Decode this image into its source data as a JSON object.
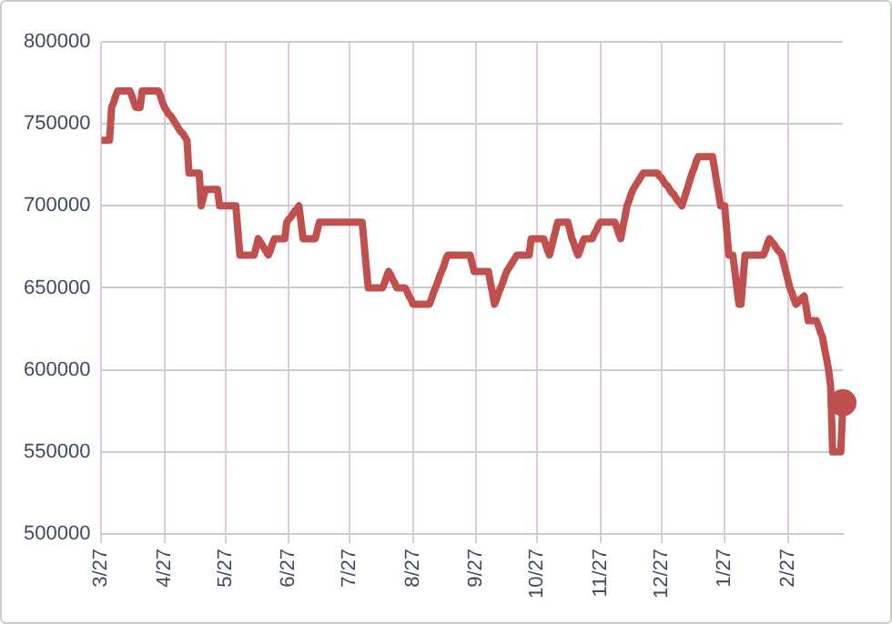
{
  "chart_data": {
    "type": "line",
    "grid": true,
    "legend": false,
    "categories": [
      "3/27",
      null,
      null,
      null,
      null,
      null,
      null,
      null,
      null,
      null,
      null,
      null,
      null,
      null,
      null,
      null,
      null,
      null,
      null,
      null,
      null,
      null,
      null,
      null,
      null,
      null,
      null,
      null,
      null,
      null,
      null,
      "4/27",
      null,
      null,
      null,
      null,
      null,
      null,
      null,
      null,
      null,
      null,
      null,
      null,
      null,
      null,
      null,
      null,
      null,
      null,
      null,
      null,
      null,
      null,
      null,
      null,
      null,
      null,
      null,
      null,
      null,
      "5/27",
      null,
      null,
      null,
      null,
      null,
      null,
      null,
      null,
      null,
      null,
      null,
      null,
      null,
      null,
      null,
      null,
      null,
      null,
      null,
      null,
      null,
      null,
      null,
      null,
      null,
      null,
      null,
      null,
      null,
      null,
      "6/27",
      null,
      null,
      null,
      null,
      null,
      null,
      null,
      null,
      null,
      null,
      null,
      null,
      null,
      null,
      null,
      null,
      null,
      null,
      null,
      null,
      null,
      null,
      null,
      null,
      null,
      null,
      null,
      null,
      null,
      "7/27",
      null,
      null,
      null,
      null,
      null,
      null,
      null,
      null,
      null,
      null,
      null,
      null,
      null,
      null,
      null,
      null,
      null,
      null,
      null,
      null,
      null,
      null,
      null,
      null,
      null,
      null,
      null,
      null,
      null,
      null,
      "8/27",
      null,
      null,
      null,
      null,
      null,
      null,
      null,
      null,
      null,
      null,
      null,
      null,
      null,
      null,
      null,
      null,
      null,
      null,
      null,
      null,
      null,
      null,
      null,
      null,
      null,
      null,
      null,
      null,
      null,
      null,
      "9/27",
      null,
      null,
      null,
      null,
      null,
      null,
      null,
      null,
      null,
      null,
      null,
      null,
      null,
      null,
      null,
      null,
      null,
      null,
      null,
      null,
      null,
      null,
      null,
      null,
      null,
      null,
      null,
      null,
      null,
      "10/27",
      null,
      null,
      null,
      null,
      null,
      null,
      null,
      null,
      null,
      null,
      null,
      null,
      null,
      null,
      null,
      null,
      null,
      null,
      null,
      null,
      null,
      null,
      null,
      null,
      null,
      null,
      null,
      null,
      null,
      null,
      "11/27",
      null,
      null,
      null,
      null,
      null,
      null,
      null,
      null,
      null,
      null,
      null,
      null,
      null,
      null,
      null,
      null,
      null,
      null,
      null,
      null,
      null,
      null,
      null,
      null,
      null,
      null,
      null,
      null,
      null,
      "12/27",
      null,
      null,
      null,
      null,
      null,
      null,
      null,
      null,
      null,
      null,
      null,
      null,
      null,
      null,
      null,
      null,
      null,
      null,
      null,
      null,
      null,
      null,
      null,
      null,
      null,
      null,
      null,
      null,
      null,
      null,
      "1/27",
      null,
      null,
      null,
      null,
      null,
      null,
      null,
      null,
      null,
      null,
      null,
      null,
      null,
      null,
      null,
      null,
      null,
      null,
      null,
      null,
      null,
      null,
      null,
      null,
      null,
      null,
      null,
      null,
      null,
      null,
      "2/27",
      null,
      null,
      null,
      null,
      null,
      null,
      null,
      null,
      null,
      null,
      null,
      null,
      null,
      null,
      null,
      null,
      null,
      null,
      null,
      null,
      null,
      null,
      null,
      null,
      null,
      null,
      null
    ],
    "ylim": [
      500000,
      800000
    ],
    "yticks": [
      500000,
      550000,
      600000,
      650000,
      700000,
      750000,
      800000
    ],
    "series": [
      {
        "type": "line",
        "color": "#c0504d",
        "marker": "none",
        "line_style": "solid",
        "values": [
          740000,
          740000,
          740000,
          740000,
          740000,
          760000,
          763000,
          767000,
          770000,
          770000,
          770000,
          770000,
          770000,
          770000,
          770000,
          767000,
          763000,
          760000,
          760000,
          760000,
          770000,
          770000,
          770000,
          770000,
          770000,
          770000,
          770000,
          770000,
          770000,
          767000,
          763000,
          760000,
          758000,
          756000,
          755000,
          753000,
          751000,
          749000,
          747000,
          745000,
          744000,
          742000,
          740000,
          720000,
          720000,
          720000,
          720000,
          720000,
          720000,
          700000,
          705000,
          710000,
          710000,
          710000,
          710000,
          710000,
          710000,
          710000,
          700000,
          700000,
          700000,
          700000,
          700000,
          700000,
          700000,
          700000,
          700000,
          685000,
          670000,
          670000,
          670000,
          670000,
          670000,
          670000,
          670000,
          670000,
          675000,
          680000,
          678000,
          676000,
          674000,
          672000,
          670000,
          673000,
          677000,
          680000,
          680000,
          680000,
          680000,
          680000,
          680000,
          690000,
          692000,
          693000,
          695000,
          697000,
          698000,
          700000,
          690000,
          680000,
          680000,
          680000,
          680000,
          680000,
          680000,
          680000,
          685000,
          690000,
          690000,
          690000,
          690000,
          690000,
          690000,
          690000,
          690000,
          690000,
          690000,
          690000,
          690000,
          690000,
          690000,
          690000,
          690000,
          690000,
          690000,
          690000,
          690000,
          690000,
          690000,
          677000,
          663000,
          650000,
          650000,
          650000,
          650000,
          650000,
          650000,
          650000,
          650000,
          653000,
          657000,
          660000,
          658000,
          655000,
          653000,
          650000,
          650000,
          650000,
          650000,
          650000,
          648000,
          645000,
          643000,
          640000,
          640000,
          640000,
          640000,
          640000,
          640000,
          640000,
          640000,
          640000,
          643000,
          647000,
          650000,
          653000,
          657000,
          660000,
          663000,
          667000,
          670000,
          670000,
          670000,
          670000,
          670000,
          670000,
          670000,
          670000,
          670000,
          670000,
          670000,
          670000,
          665000,
          660000,
          660000,
          660000,
          660000,
          660000,
          660000,
          660000,
          660000,
          653000,
          647000,
          640000,
          643000,
          647000,
          650000,
          653000,
          657000,
          660000,
          662000,
          664000,
          666000,
          668000,
          670000,
          670000,
          670000,
          670000,
          670000,
          670000,
          670000,
          680000,
          680000,
          680000,
          680000,
          680000,
          680000,
          680000,
          677000,
          673000,
          670000,
          675000,
          680000,
          685000,
          690000,
          690000,
          690000,
          690000,
          690000,
          690000,
          685000,
          680000,
          677000,
          673000,
          670000,
          673000,
          677000,
          680000,
          680000,
          680000,
          680000,
          680000,
          683000,
          685000,
          688000,
          690000,
          690000,
          690000,
          690000,
          690000,
          690000,
          690000,
          690000,
          687000,
          683000,
          680000,
          687000,
          693000,
          700000,
          703000,
          707000,
          710000,
          712000,
          714000,
          716000,
          718000,
          720000,
          720000,
          720000,
          720000,
          720000,
          720000,
          720000,
          720000,
          718000,
          717000,
          715000,
          713000,
          712000,
          710000,
          708000,
          707000,
          705000,
          703000,
          702000,
          700000,
          704000,
          708000,
          712000,
          716000,
          720000,
          723000,
          727000,
          730000,
          730000,
          730000,
          730000,
          730000,
          730000,
          730000,
          730000,
          723000,
          715000,
          708000,
          700000,
          700000,
          700000,
          685000,
          670000,
          670000,
          670000,
          660000,
          650000,
          640000,
          640000,
          655000,
          670000,
          670000,
          670000,
          670000,
          670000,
          670000,
          670000,
          670000,
          670000,
          670000,
          673000,
          677000,
          680000,
          678000,
          677000,
          675000,
          673000,
          672000,
          670000,
          665000,
          660000,
          655000,
          650000,
          647000,
          643000,
          640000,
          641000,
          643000,
          644000,
          645000,
          638000,
          630000,
          630000,
          630000,
          630000,
          630000,
          627000,
          623000,
          620000,
          613000,
          607000,
          600000,
          590000,
          550000,
          550000,
          550000,
          550000,
          550000,
          580000
        ]
      },
      {
        "type": "scatter",
        "color": "#c0504d",
        "marker": "circle",
        "values": [
          null,
          null,
          null,
          null,
          null,
          null,
          null,
          null,
          null,
          null,
          null,
          null,
          null,
          null,
          null,
          null,
          null,
          null,
          null,
          null,
          null,
          null,
          null,
          null,
          null,
          null,
          null,
          null,
          null,
          null,
          null,
          null,
          null,
          null,
          null,
          null,
          null,
          null,
          null,
          null,
          null,
          null,
          null,
          null,
          null,
          null,
          null,
          null,
          null,
          null,
          null,
          null,
          null,
          null,
          null,
          null,
          null,
          null,
          null,
          null,
          null,
          null,
          null,
          null,
          null,
          null,
          null,
          null,
          null,
          null,
          null,
          null,
          null,
          null,
          null,
          null,
          null,
          null,
          null,
          null,
          null,
          null,
          null,
          null,
          null,
          null,
          null,
          null,
          null,
          null,
          null,
          null,
          null,
          null,
          null,
          null,
          null,
          null,
          null,
          null,
          null,
          null,
          null,
          null,
          null,
          null,
          null,
          null,
          null,
          null,
          null,
          null,
          null,
          null,
          null,
          null,
          null,
          null,
          null,
          null,
          null,
          null,
          null,
          null,
          null,
          null,
          null,
          null,
          null,
          null,
          null,
          null,
          null,
          null,
          null,
          null,
          null,
          null,
          null,
          null,
          null,
          null,
          null,
          null,
          null,
          null,
          null,
          null,
          null,
          null,
          null,
          null,
          null,
          null,
          null,
          null,
          null,
          null,
          null,
          null,
          null,
          null,
          null,
          null,
          null,
          null,
          null,
          null,
          null,
          null,
          null,
          null,
          null,
          null,
          null,
          null,
          null,
          null,
          null,
          null,
          null,
          null,
          null,
          null,
          null,
          null,
          null,
          null,
          null,
          null,
          null,
          null,
          null,
          null,
          null,
          null,
          null,
          null,
          null,
          null,
          null,
          null,
          null,
          null,
          null,
          null,
          null,
          null,
          null,
          null,
          null,
          null,
          null,
          null,
          null,
          null,
          null,
          null,
          null,
          null,
          null,
          null,
          null,
          null,
          null,
          null,
          null,
          null,
          null,
          null,
          null,
          null,
          null,
          null,
          null,
          null,
          null,
          null,
          null,
          null,
          null,
          null,
          null,
          null,
          null,
          null,
          null,
          null,
          null,
          null,
          null,
          null,
          null,
          null,
          null,
          null,
          null,
          null,
          null,
          null,
          null,
          null,
          null,
          null,
          null,
          null,
          null,
          null,
          null,
          null,
          null,
          null,
          null,
          null,
          null,
          null,
          null,
          null,
          null,
          null,
          null,
          null,
          null,
          null,
          null,
          null,
          null,
          null,
          null,
          null,
          null,
          null,
          null,
          null,
          null,
          null,
          null,
          null,
          null,
          null,
          null,
          null,
          null,
          null,
          null,
          null,
          null,
          null,
          null,
          null,
          null,
          null,
          null,
          null,
          null,
          null,
          null,
          null,
          null,
          null,
          null,
          null,
          null,
          null,
          null,
          null,
          null,
          null,
          null,
          null,
          null,
          null,
          null,
          null,
          null,
          null,
          null,
          null,
          null,
          null,
          null,
          null,
          null,
          null,
          null,
          null,
          null,
          null,
          null,
          null,
          null,
          null,
          null,
          null,
          null,
          null,
          null,
          null,
          null,
          null,
          null,
          null,
          null,
          null,
          580000
        ]
      }
    ]
  }
}
